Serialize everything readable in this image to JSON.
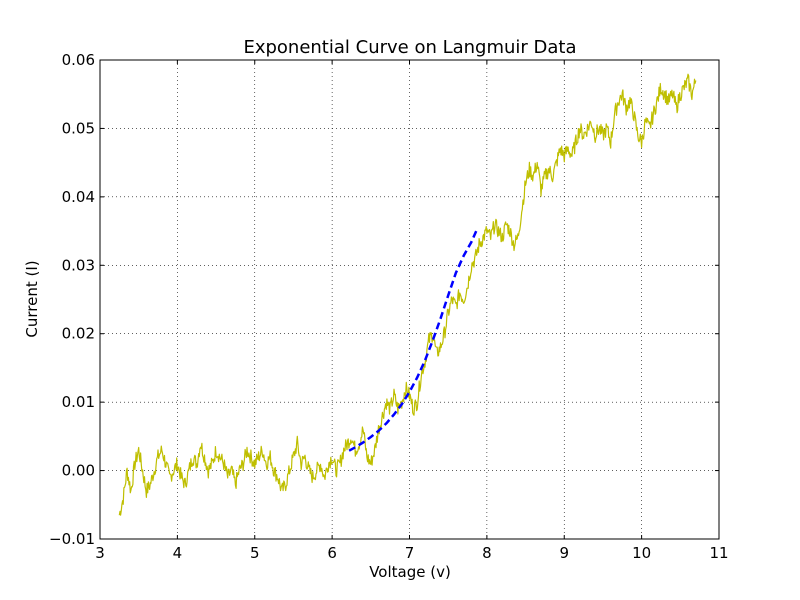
{
  "chart_data": {
    "type": "line",
    "title": "Exponential Curve on Langmuir Data",
    "xlabel": "Voltage (v)",
    "ylabel": "Current (I)",
    "xlim": [
      3,
      11
    ],
    "ylim": [
      -0.01,
      0.06
    ],
    "xticks": [
      "3",
      "4",
      "5",
      "6",
      "7",
      "8",
      "9",
      "10",
      "11"
    ],
    "yticks": [
      "−0.01",
      "0.00",
      "0.01",
      "0.02",
      "0.03",
      "0.04",
      "0.05",
      "0.06"
    ],
    "xtick_values": [
      3,
      4,
      5,
      6,
      7,
      8,
      9,
      10,
      11
    ],
    "ytick_values": [
      -0.01,
      0,
      0.01,
      0.02,
      0.03,
      0.04,
      0.05,
      0.06
    ],
    "grid": true,
    "series": [
      {
        "style": "solid",
        "color": "#bfbf00",
        "x": [
          3.25,
          3.3,
          3.35,
          3.4,
          3.45,
          3.5,
          3.55,
          3.6,
          3.65,
          3.7,
          3.75,
          3.8,
          3.85,
          3.9,
          3.95,
          4.0,
          4.05,
          4.1,
          4.15,
          4.2,
          4.25,
          4.3,
          4.35,
          4.4,
          4.45,
          4.5,
          4.55,
          4.6,
          4.65,
          4.7,
          4.75,
          4.8,
          4.85,
          4.9,
          4.95,
          5.0,
          5.05,
          5.1,
          5.15,
          5.2,
          5.25,
          5.3,
          5.35,
          5.4,
          5.45,
          5.5,
          5.55,
          5.6,
          5.65,
          5.7,
          5.75,
          5.8,
          5.85,
          5.9,
          5.95,
          6.0,
          6.05,
          6.1,
          6.15,
          6.2,
          6.25,
          6.3,
          6.35,
          6.4,
          6.45,
          6.5,
          6.55,
          6.6,
          6.65,
          6.7,
          6.75,
          6.8,
          6.85,
          6.9,
          6.95,
          7.0,
          7.05,
          7.1,
          7.15,
          7.2,
          7.25,
          7.3,
          7.35,
          7.4,
          7.45,
          7.5,
          7.55,
          7.6,
          7.65,
          7.7,
          7.75,
          7.8,
          7.85,
          7.9,
          7.95,
          8.0,
          8.05,
          8.1,
          8.15,
          8.2,
          8.25,
          8.3,
          8.35,
          8.4,
          8.45,
          8.5,
          8.55,
          8.6,
          8.65,
          8.7,
          8.75,
          8.8,
          8.85,
          8.9,
          8.95,
          9.0,
          9.05,
          9.1,
          9.15,
          9.2,
          9.25,
          9.3,
          9.35,
          9.4,
          9.45,
          9.5,
          9.55,
          9.6,
          9.65,
          9.7,
          9.75,
          9.8,
          9.85,
          9.9,
          9.95,
          10.0,
          10.05,
          10.1,
          10.15,
          10.2,
          10.25,
          10.3,
          10.35,
          10.4,
          10.45,
          10.5,
          10.55,
          10.6,
          10.65,
          10.7
        ],
        "y": [
          -0.0065,
          -0.004,
          0.0,
          -0.003,
          0.001,
          0.003,
          0.0,
          -0.003,
          -0.002,
          0.0,
          0.002,
          0.003,
          0.001,
          -0.001,
          0.0,
          0.001,
          -0.001,
          -0.002,
          0.0,
          0.002,
          0.001,
          0.004,
          0.002,
          0.0,
          0.001,
          0.003,
          0.002,
          0.001,
          -0.001,
          0.0,
          -0.002,
          0.0,
          0.001,
          0.003,
          0.002,
          0.001,
          0.002,
          0.003,
          0.001,
          0.002,
          0.0,
          -0.001,
          -0.003,
          -0.002,
          0.0,
          0.002,
          0.004,
          0.001,
          0.002,
          0.0,
          -0.001,
          0.0,
          0.001,
          -0.001,
          0.001,
          0.002,
          0.0,
          0.001,
          0.003,
          0.004,
          0.005,
          0.003,
          0.004,
          0.006,
          0.002,
          0.001,
          0.003,
          0.006,
          0.008,
          0.01,
          0.009,
          0.011,
          0.009,
          0.01,
          0.012,
          0.011,
          0.009,
          0.01,
          0.014,
          0.016,
          0.019,
          0.02,
          0.017,
          0.018,
          0.02,
          0.023,
          0.025,
          0.024,
          0.026,
          0.025,
          0.027,
          0.03,
          0.031,
          0.033,
          0.034,
          0.035,
          0.034,
          0.036,
          0.035,
          0.034,
          0.036,
          0.035,
          0.033,
          0.034,
          0.038,
          0.042,
          0.044,
          0.043,
          0.045,
          0.041,
          0.043,
          0.044,
          0.043,
          0.045,
          0.047,
          0.046,
          0.047,
          0.046,
          0.048,
          0.05,
          0.049,
          0.05,
          0.051,
          0.049,
          0.05,
          0.049,
          0.05,
          0.048,
          0.052,
          0.054,
          0.055,
          0.053,
          0.054,
          0.052,
          0.049,
          0.048,
          0.051,
          0.05,
          0.052,
          0.054,
          0.056,
          0.055,
          0.054,
          0.055,
          0.053,
          0.055,
          0.056,
          0.057,
          0.055,
          0.057
        ]
      },
      {
        "style": "dashed",
        "color": "#0000ff",
        "x": [
          6.22,
          6.3,
          6.4,
          6.5,
          6.6,
          6.7,
          6.8,
          6.9,
          7.0,
          7.1,
          7.2,
          7.3,
          7.4,
          7.5,
          7.6,
          7.7,
          7.8,
          7.87
        ],
        "y": [
          0.0029,
          0.0034,
          0.0041,
          0.0049,
          0.0058,
          0.0069,
          0.0082,
          0.0097,
          0.0115,
          0.0136,
          0.0161,
          0.019,
          0.0222,
          0.0256,
          0.0289,
          0.0314,
          0.0334,
          0.0352
        ]
      }
    ]
  }
}
